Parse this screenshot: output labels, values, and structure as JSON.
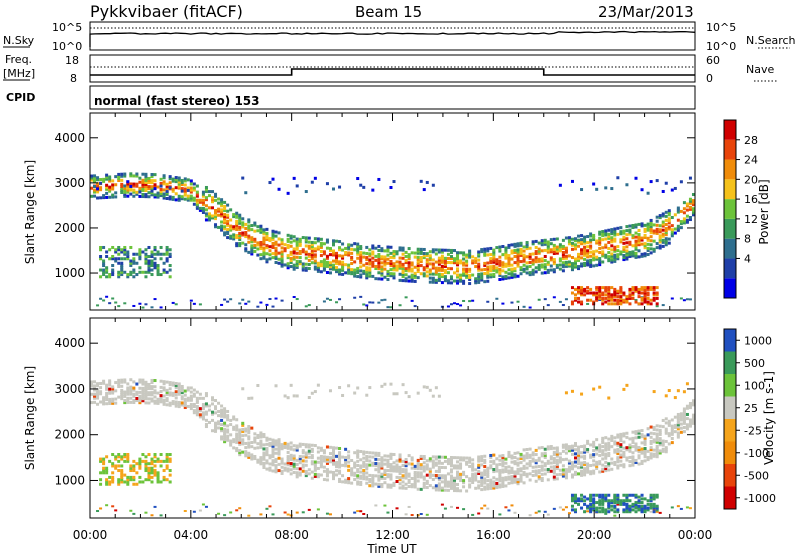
{
  "header": {
    "station": "Pykkvibaer (fitACF)",
    "beam": "Beam 15",
    "date": "23/Mar/2013"
  },
  "strip_sky": {
    "label": "N.Sky",
    "left_ticks": [
      "10^5",
      "10^0"
    ],
    "right_ticks": [
      "10^5",
      "10^0"
    ],
    "right_label": "N.Search"
  },
  "strip_freq": {
    "label_line1": "Freq.",
    "label_line2": "[MHz]",
    "left_ticks": [
      "18",
      "8"
    ],
    "right_ticks": [
      "60",
      "0"
    ],
    "right_label": "Nave"
  },
  "cpid": {
    "label": "CPID",
    "text": "normal (fast stereo) 153"
  },
  "chart_data": [
    {
      "type": "heatmap",
      "name": "power",
      "xlabel": "Time UT",
      "ylabel": "Slant Range [km]",
      "x_ticks": [
        "00:00",
        "04:00",
        "08:00",
        "12:00",
        "16:00",
        "20:00",
        "00:00"
      ],
      "y_ticks": [
        "1000",
        "2000",
        "3000",
        "4000"
      ],
      "ylim": [
        180,
        4550
      ],
      "xlim_hours": [
        0,
        24
      ],
      "colorbar": {
        "label": "Power [dB]",
        "ticks": [
          "28",
          "24",
          "20",
          "16",
          "12",
          "8",
          "4"
        ],
        "colors": [
          "#0000e6",
          "#1f3fa8",
          "#2e6e8e",
          "#3a9a5a",
          "#6cc33a",
          "#f5c21b",
          "#f08c0a",
          "#e8440a",
          "#d00000"
        ]
      },
      "scatter_band": {
        "points": [
          [
            0.0,
            2950
          ],
          [
            1.5,
            3000
          ],
          [
            2.6,
            2980
          ],
          [
            3.8,
            2880
          ],
          [
            4.8,
            2500
          ],
          [
            5.8,
            2000
          ],
          [
            7.0,
            1650
          ],
          [
            8.0,
            1500
          ],
          [
            9.0,
            1450
          ],
          [
            10.0,
            1380
          ],
          [
            11.0,
            1300
          ],
          [
            12.0,
            1260
          ],
          [
            13.0,
            1220
          ],
          [
            14.0,
            1200
          ],
          [
            15.0,
            1180
          ],
          [
            16.0,
            1250
          ],
          [
            17.0,
            1350
          ],
          [
            18.0,
            1420
          ],
          [
            19.0,
            1480
          ],
          [
            20.0,
            1580
          ],
          [
            21.0,
            1700
          ],
          [
            22.0,
            1800
          ],
          [
            23.0,
            2100
          ],
          [
            24.0,
            2600
          ]
        ],
        "range_values": [
          2950,
          3000,
          2980,
          2880,
          2500,
          2000,
          1650,
          1500,
          1450,
          1380,
          1300,
          1260,
          1220,
          1200,
          1180,
          1250,
          1350,
          1420,
          1480,
          1580,
          1700,
          1800,
          2100,
          2600
        ]
      }
    },
    {
      "type": "heatmap",
      "name": "velocity",
      "xlabel": "Time UT",
      "ylabel": "Slant Range [km]",
      "x_ticks": [
        "00:00",
        "04:00",
        "08:00",
        "12:00",
        "16:00",
        "20:00",
        "00:00"
      ],
      "y_ticks": [
        "1000",
        "2000",
        "3000",
        "4000"
      ],
      "ylim": [
        180,
        4550
      ],
      "xlim_hours": [
        0,
        24
      ],
      "colorbar": {
        "label": "Velocity [m s-1]",
        "ticks": [
          "1000",
          "500",
          "100",
          "25",
          "-25",
          "-100",
          "-500",
          "-1000"
        ],
        "colors": [
          "#2050c0",
          "#3a9a5a",
          "#6cc33a",
          "#c8c8c0",
          "#f5a41b",
          "#f08c0a",
          "#e8440a",
          "#d00000"
        ]
      }
    }
  ]
}
